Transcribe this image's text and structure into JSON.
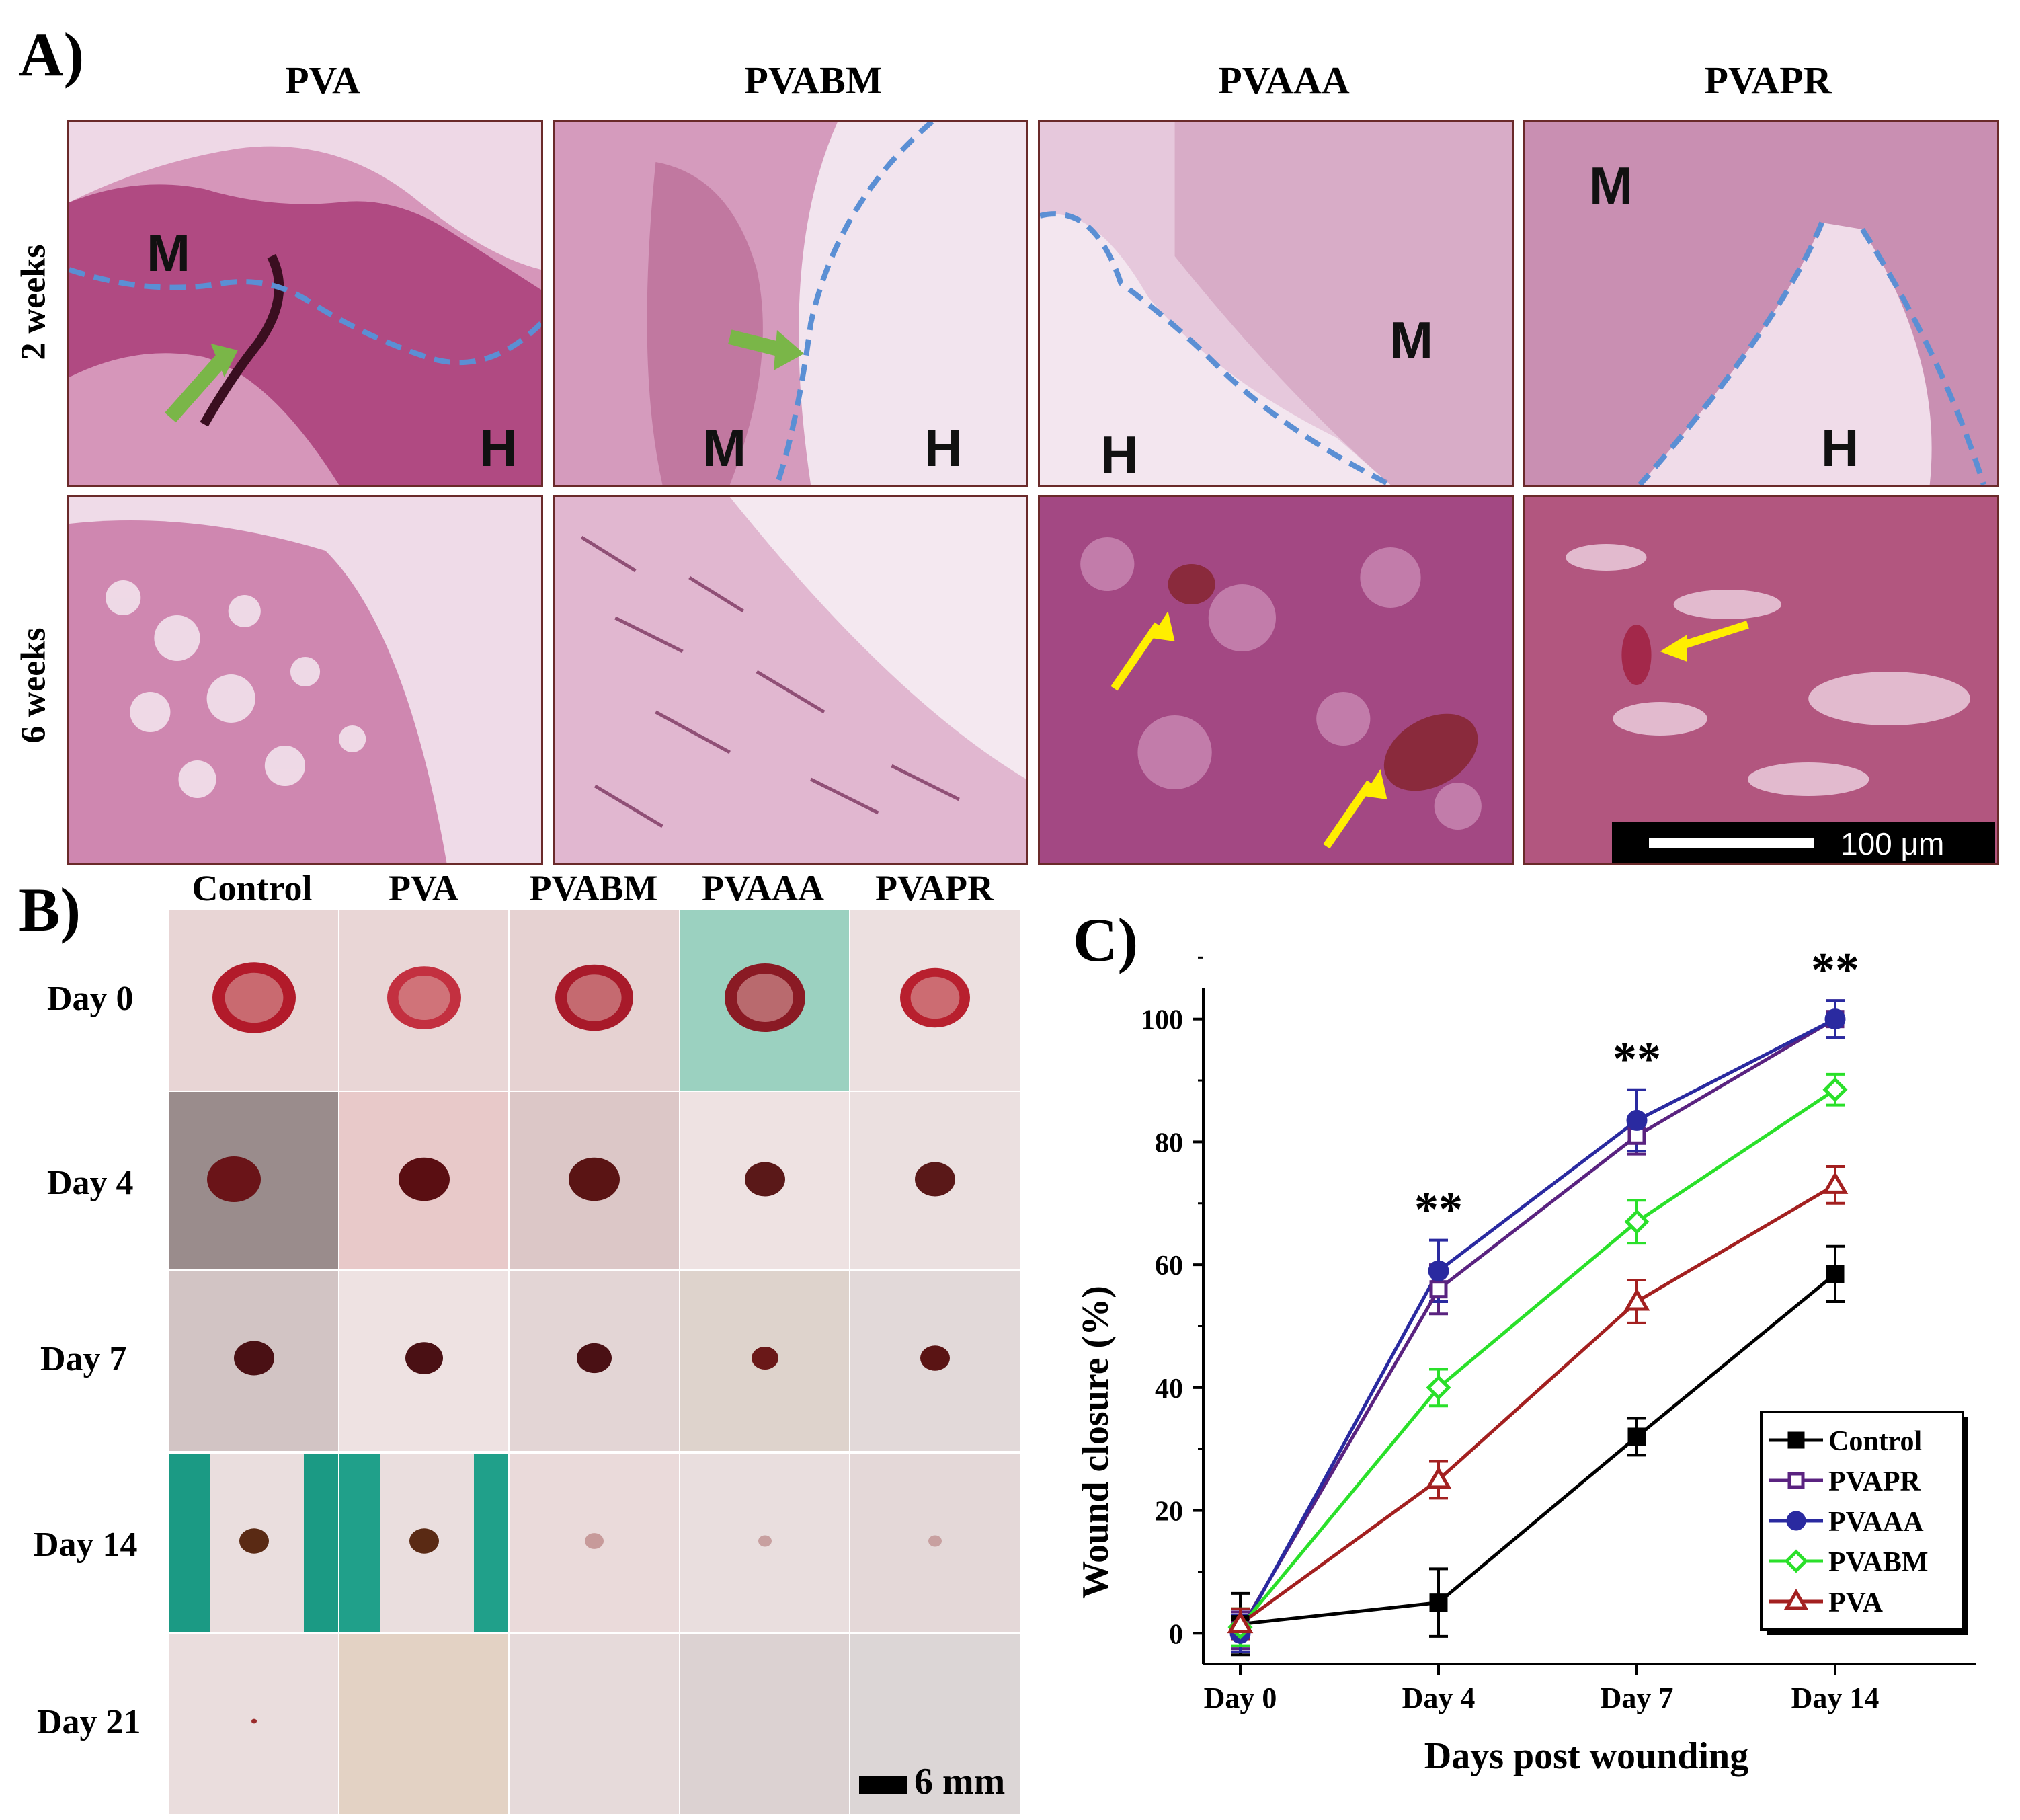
{
  "panels": {
    "a": {
      "label": "A)",
      "columns": [
        "PVA",
        "PVABM",
        "PVAAA",
        "PVAPR"
      ],
      "rows": [
        "2 weeks",
        "6 weeks"
      ],
      "markers": {
        "m": "M",
        "h": "H"
      },
      "scale_text": "100 μm",
      "colors": {
        "tissue": "#b0457a",
        "tissue_light": "#e8c6dd",
        "boundary": "#5b8fd4",
        "arrow_green": "#7ab648",
        "arrow_yellow": "#ffee00"
      }
    },
    "b": {
      "label": "B)",
      "columns": [
        "Control",
        "PVA",
        "PVABM",
        "PVAAA",
        "PVAPR"
      ],
      "rows": [
        "Day 0",
        "Day 4",
        "Day 7",
        "Day 14",
        "Day 21"
      ],
      "scale_text": "6 mm"
    },
    "c": {
      "label": "C)"
    }
  },
  "chart_data": {
    "type": "line",
    "xlabel": "Days post wounding",
    "ylabel": "Wound closure (%)",
    "categories": [
      "Day 0",
      "Day 4",
      "Day 7",
      "Day 14"
    ],
    "ylim": [
      -5,
      105
    ],
    "yticks": [
      "0",
      "20",
      "40",
      "60",
      "80",
      "100"
    ],
    "legend_position": "bottom-right",
    "significance": [
      "**",
      "**",
      "**"
    ],
    "series": [
      {
        "name": "Control",
        "color": "#000000",
        "marker": "square-filled",
        "values": [
          1.5,
          5,
          32,
          58.5
        ],
        "errors": [
          5,
          5.5,
          3,
          4.5
        ]
      },
      {
        "name": "PVAPR",
        "color": "#5a2380",
        "marker": "square-open",
        "values": [
          0.5,
          56,
          81,
          100
        ],
        "errors": [
          3,
          4,
          3,
          3
        ]
      },
      {
        "name": "PVAAA",
        "color": "#2a2aa0",
        "marker": "circle-filled",
        "values": [
          0,
          59,
          83.5,
          100
        ],
        "errors": [
          3,
          5,
          5,
          3
        ]
      },
      {
        "name": "PVABM",
        "color": "#2ae02a",
        "marker": "diamond-open",
        "values": [
          1,
          40,
          67,
          88.5
        ],
        "errors": [
          3,
          3,
          3.5,
          2.5
        ]
      },
      {
        "name": "PVA",
        "color": "#a32020",
        "marker": "triangle-open",
        "values": [
          1.5,
          25,
          54,
          73
        ],
        "errors": [
          2.5,
          3,
          3.5,
          3
        ]
      }
    ]
  }
}
